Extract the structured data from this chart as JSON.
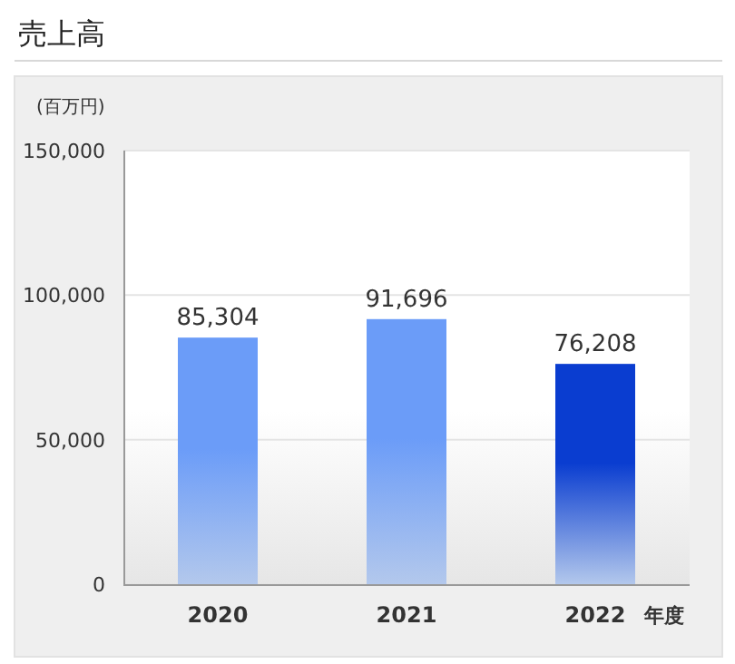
{
  "chart_data": {
    "type": "bar",
    "title": "売上高",
    "ylabel": "(百万円)",
    "xlabel": "年度",
    "categories": [
      "2020",
      "2021",
      "2022"
    ],
    "values": [
      85304,
      91696,
      76208
    ],
    "colors": [
      "#6b9cf8",
      "#6b9cf8",
      "#0a3dd0"
    ],
    "ylim": [
      0,
      150000
    ],
    "yticks": [
      {
        "value": 0,
        "label": "0"
      },
      {
        "value": 50000,
        "label": "50,000"
      },
      {
        "value": 100000,
        "label": "100,000"
      },
      {
        "value": 150000,
        "label": "150,000"
      }
    ],
    "grid": "y",
    "value_labels": [
      "85,304",
      "91,696",
      "76,208"
    ]
  }
}
